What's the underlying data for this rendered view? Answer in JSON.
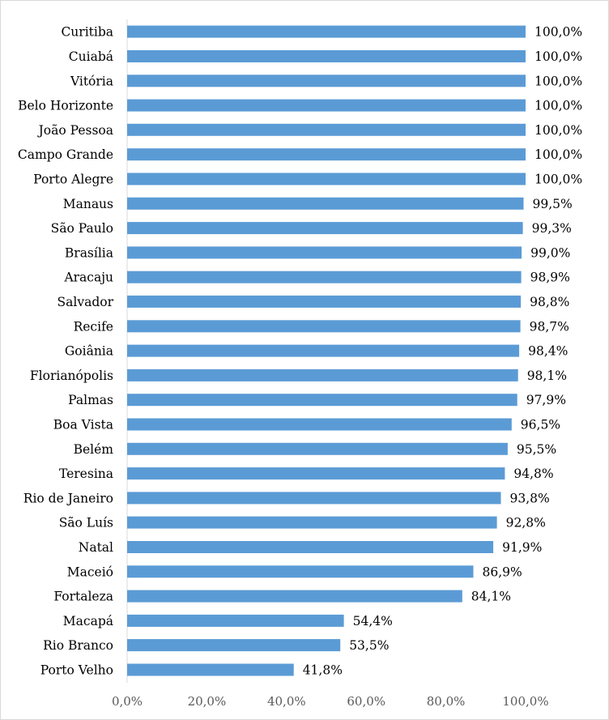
{
  "chart_data": {
    "type": "bar",
    "orientation": "horizontal",
    "categories": [
      "Curitiba",
      "Cuiabá",
      "Vitória",
      "Belo Horizonte",
      "João Pessoa",
      "Campo Grande",
      "Porto Alegre",
      "Manaus",
      "São Paulo",
      "Brasília",
      "Aracaju",
      "Salvador",
      "Recife",
      "Goiânia",
      "Florianópolis",
      "Palmas",
      "Boa Vista",
      "Belém",
      "Teresina",
      "Rio de Janeiro",
      "São Luís",
      "Natal",
      "Maceió",
      "Fortaleza",
      "Macapá",
      "Rio Branco",
      "Porto Velho"
    ],
    "values": [
      100.0,
      100.0,
      100.0,
      100.0,
      100.0,
      100.0,
      100.0,
      99.5,
      99.3,
      99.0,
      98.9,
      98.8,
      98.7,
      98.4,
      98.1,
      97.9,
      96.5,
      95.5,
      94.8,
      93.8,
      92.8,
      91.9,
      86.9,
      84.1,
      54.4,
      53.5,
      41.8
    ],
    "value_labels": [
      "100,0%",
      "100,0%",
      "100,0%",
      "100,0%",
      "100,0%",
      "100,0%",
      "100,0%",
      "99,5%",
      "99,3%",
      "99,0%",
      "98,9%",
      "98,8%",
      "98,7%",
      "98,4%",
      "98,1%",
      "97,9%",
      "96,5%",
      "95,5%",
      "94,8%",
      "93,8%",
      "92,8%",
      "91,9%",
      "86,9%",
      "84,1%",
      "54,4%",
      "53,5%",
      "41,8%"
    ],
    "xlim": [
      0,
      100
    ],
    "x_ticks": [
      0,
      20,
      40,
      60,
      80,
      100
    ],
    "x_tick_labels": [
      "0,0%",
      "20,0%",
      "40,0%",
      "60,0%",
      "80,0%",
      "100,0%"
    ],
    "bar_color": "#5b9bd5",
    "grid": false,
    "legend": "none"
  }
}
